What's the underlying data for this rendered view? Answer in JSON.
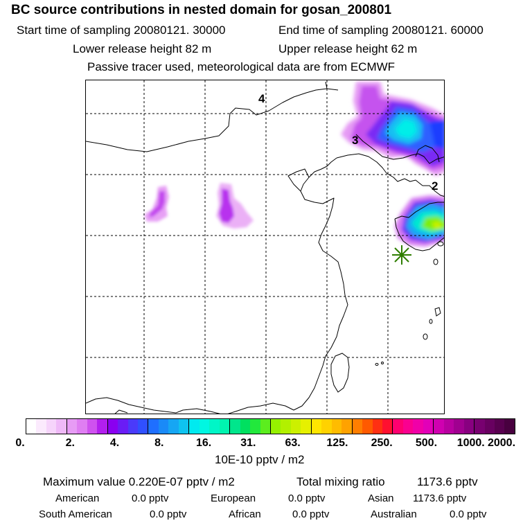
{
  "header": {
    "title": "BC  source contributions in nested domain for gosan_200801",
    "start_sampling": "Start time of sampling 20080121. 30000",
    "end_sampling": "End time of sampling 20080121. 60000",
    "lower_release": "Lower release height   82 m",
    "upper_release": "Upper release height   62 m",
    "tracer_info": "Passive tracer used, meteorological data are from ECMWF"
  },
  "map": {
    "region_labels": [
      "4",
      "3",
      "2"
    ],
    "receptor_marker": "gosan-station",
    "colors": {
      "coast": "#000000",
      "grid": "#000000",
      "receptor": "#2e7d00"
    }
  },
  "colorbar": {
    "tick_labels": [
      "0.",
      "2.",
      "4.",
      "8.",
      "16.",
      "31.",
      "63.",
      "125.",
      "250.",
      "500.",
      "1000.",
      "2000."
    ],
    "units": "10E-10 pptv / m2",
    "colors": [
      [
        "#ffffff",
        "#fbeafd",
        "#f6d4fb",
        "#efb9f8"
      ],
      [
        "#e79cf5",
        "#df7ef2",
        "#cf52ef",
        "#b21fee"
      ],
      [
        "#8a00f0",
        "#6a1cf5",
        "#4a3afa",
        "#3050ff"
      ],
      [
        "#1f6fff",
        "#1a8af7",
        "#16a6f3",
        "#0fc3f0"
      ],
      [
        "#00eaf0",
        "#00f7e2",
        "#00f6c7",
        "#00f4b0"
      ],
      [
        "#00e68c",
        "#00e060",
        "#22e83c",
        "#5ced1e"
      ],
      [
        "#96f000",
        "#b2f000",
        "#ccf000",
        "#e6f000"
      ],
      [
        "#ffe600",
        "#ffd200",
        "#ffbc00",
        "#ffa200"
      ],
      [
        "#ff7e00",
        "#ff5a00",
        "#ff3012",
        "#ff1030"
      ],
      [
        "#ff0070",
        "#fa0090",
        "#f000a8",
        "#e200b8"
      ],
      [
        "#d000b0",
        "#b800a0",
        "#a00090",
        "#880080"
      ],
      [
        "#780070",
        "#680060",
        "#58004f",
        "#48003f"
      ]
    ]
  },
  "footer": {
    "max_value": "Maximum value  0.220E-07 pptv / m2",
    "total_mixing": "Total mixing ratio",
    "total_value": "1173.6 pptv",
    "american_label": "American",
    "american_value": "0.0 pptv",
    "european_label": "European",
    "european_value": "0.0 pptv",
    "asian_label": "Asian",
    "asian_value": "1173.6 pptv",
    "south_american_label": "South American",
    "south_american_value": "0.0 pptv",
    "african_label": "African",
    "african_value": "0.0 pptv",
    "australian_label": "Australian",
    "australian_value": "0.0 pptv"
  }
}
